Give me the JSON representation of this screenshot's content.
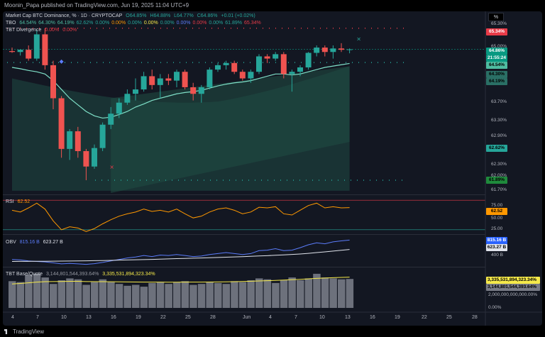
{
  "publisher_line": "Moonin_Papa published on TradingView.com, Jun 19, 2025 11:04 UTC+9",
  "footer_brand": "TradingView",
  "main_legend": {
    "title": "Market Cap BTC Dominance, % · 1D · CRYPTOCAP",
    "o": "O64.85%",
    "h": "H64.88%",
    "l": "L64.77%",
    "c": "C64.86%",
    "chg": "+0.01 (+0.02%)"
  },
  "tbo_legend": {
    "name": "TBO",
    "vals": [
      "64.54%",
      "64.30%",
      "64.19%",
      "62.62%",
      "0.00%",
      "0.00%",
      "0.00%",
      "0.00%",
      "0.00%",
      "0.00%",
      "0.00%",
      "0.00%",
      "61.89%",
      "65.34%"
    ]
  },
  "div_legend": {
    "name": "TBT Divergence",
    "v1": "0.00%",
    "v2": "0.00%"
  },
  "rsi_legend": {
    "name": "RSI",
    "value": "62.52"
  },
  "obv_legend": {
    "name": "OBV",
    "v1": "815.16 B",
    "v2": "623.27 B"
  },
  "base_legend": {
    "name": "TBT Base/Quote",
    "v1": "3,144,801,544,393.64%",
    "v2": "3,335,531,894,323.34%"
  },
  "price_axis": {
    "pct_label": "%",
    "ticks": [
      "65.30%",
      "65.00%",
      "64.70%",
      "64.30%",
      "63.70%",
      "63.30%",
      "62.90%",
      "62.30%",
      "62.00%",
      "61.70%"
    ],
    "badges": [
      {
        "text": "65.34%",
        "color": "#e83b48"
      },
      {
        "text": "64.86%",
        "color": "#089981"
      },
      {
        "text": "21:55:24",
        "color": "#089981"
      },
      {
        "text": "64.54%",
        "color": "#4ebca0"
      },
      {
        "text": "64.30%",
        "color": "#2a6f65"
      },
      {
        "text": "64.19%",
        "color": "#2a6f65"
      },
      {
        "text": "62.62%",
        "color": "#26a69a"
      },
      {
        "text": "61.89%",
        "color": "#1f8a3c"
      }
    ]
  },
  "rsi_axis": {
    "ticks": [
      "75.00",
      "50.00",
      "25.00"
    ],
    "badge": "62.52"
  },
  "obv_axis": {
    "badges": [
      "815.16 B",
      "623.27 B"
    ],
    "tick": "400 B"
  },
  "base_axis": {
    "badges": [
      "3,335,531,894,323.34%",
      "3,144,801,544,393.64%"
    ],
    "ticks": [
      "2,000,000,000,000.00%",
      "0.00%"
    ]
  },
  "dates": [
    "4",
    "7",
    "10",
    "13",
    "16",
    "19",
    "22",
    "25",
    "28",
    "Jun",
    "4",
    "7",
    "10",
    "13",
    "16",
    "19",
    "22",
    "25",
    "28"
  ],
  "chart_data": {
    "type": "candlestick",
    "title": "Market Cap BTC Dominance, % · 1D · CRYPTOCAP",
    "xlabel": "",
    "ylabel": "%",
    "ylim": [
      61.6,
      65.4
    ],
    "candles": [
      {
        "o": 64.82,
        "h": 64.9,
        "l": 64.78,
        "c": 64.8
      },
      {
        "o": 64.8,
        "h": 64.86,
        "l": 64.72,
        "c": 64.85
      },
      {
        "o": 64.85,
        "h": 64.95,
        "l": 64.6,
        "c": 64.65
      },
      {
        "o": 64.65,
        "h": 65.3,
        "l": 64.6,
        "c": 65.2
      },
      {
        "o": 65.2,
        "h": 65.34,
        "l": 64.4,
        "c": 64.5
      },
      {
        "o": 64.5,
        "h": 64.6,
        "l": 63.5,
        "c": 63.75
      },
      {
        "o": 63.75,
        "h": 63.8,
        "l": 62.4,
        "c": 62.6
      },
      {
        "o": 62.6,
        "h": 63.05,
        "l": 62.35,
        "c": 63.0
      },
      {
        "o": 63.0,
        "h": 63.1,
        "l": 62.4,
        "c": 62.55
      },
      {
        "o": 62.55,
        "h": 62.6,
        "l": 61.89,
        "c": 62.2
      },
      {
        "o": 62.2,
        "h": 62.7,
        "l": 62.15,
        "c": 62.62
      },
      {
        "o": 62.62,
        "h": 63.2,
        "l": 62.55,
        "c": 63.15
      },
      {
        "o": 63.15,
        "h": 63.55,
        "l": 63.05,
        "c": 63.4
      },
      {
        "o": 63.4,
        "h": 63.75,
        "l": 63.3,
        "c": 63.65
      },
      {
        "o": 63.65,
        "h": 63.95,
        "l": 63.6,
        "c": 63.85
      },
      {
        "o": 63.85,
        "h": 64.2,
        "l": 63.7,
        "c": 63.95
      },
      {
        "o": 63.95,
        "h": 64.35,
        "l": 63.9,
        "c": 64.25
      },
      {
        "o": 64.25,
        "h": 64.4,
        "l": 63.95,
        "c": 64.05
      },
      {
        "o": 64.05,
        "h": 64.3,
        "l": 63.75,
        "c": 64.2
      },
      {
        "o": 64.2,
        "h": 64.3,
        "l": 64.05,
        "c": 64.15
      },
      {
        "o": 64.15,
        "h": 64.4,
        "l": 64.0,
        "c": 64.35
      },
      {
        "o": 64.35,
        "h": 64.4,
        "l": 63.95,
        "c": 64.0
      },
      {
        "o": 64.0,
        "h": 64.1,
        "l": 63.7,
        "c": 63.85
      },
      {
        "o": 63.85,
        "h": 64.05,
        "l": 63.65,
        "c": 64.0
      },
      {
        "o": 64.0,
        "h": 64.45,
        "l": 63.95,
        "c": 64.4
      },
      {
        "o": 64.4,
        "h": 64.55,
        "l": 64.35,
        "c": 64.5
      },
      {
        "o": 64.5,
        "h": 64.6,
        "l": 64.4,
        "c": 64.55
      },
      {
        "o": 64.55,
        "h": 64.6,
        "l": 64.3,
        "c": 64.35
      },
      {
        "o": 64.35,
        "h": 64.4,
        "l": 64.15,
        "c": 64.2
      },
      {
        "o": 64.2,
        "h": 64.4,
        "l": 64.1,
        "c": 64.35
      },
      {
        "o": 64.35,
        "h": 64.75,
        "l": 64.3,
        "c": 64.7
      },
      {
        "o": 64.7,
        "h": 64.75,
        "l": 64.55,
        "c": 64.65
      },
      {
        "o": 64.65,
        "h": 64.8,
        "l": 64.6,
        "c": 64.75
      },
      {
        "o": 64.75,
        "h": 64.8,
        "l": 64.2,
        "c": 64.3
      },
      {
        "o": 64.3,
        "h": 64.4,
        "l": 63.9,
        "c": 64.35
      },
      {
        "o": 64.35,
        "h": 64.5,
        "l": 64.25,
        "c": 64.45
      },
      {
        "o": 64.45,
        "h": 64.8,
        "l": 64.4,
        "c": 64.78
      },
      {
        "o": 64.78,
        "h": 64.95,
        "l": 64.7,
        "c": 64.9
      },
      {
        "o": 64.9,
        "h": 64.95,
        "l": 64.7,
        "c": 64.8
      },
      {
        "o": 64.8,
        "h": 64.95,
        "l": 64.65,
        "c": 64.88
      },
      {
        "o": 64.88,
        "h": 65.0,
        "l": 64.8,
        "c": 64.85
      },
      {
        "o": 64.85,
        "h": 64.88,
        "l": 64.77,
        "c": 64.86
      }
    ],
    "rsi": [
      58,
      55,
      62,
      70,
      60,
      40,
      25,
      30,
      28,
      22,
      27,
      35,
      42,
      48,
      52,
      55,
      60,
      56,
      58,
      55,
      60,
      52,
      45,
      48,
      55,
      60,
      62,
      58,
      52,
      55,
      63,
      62,
      64,
      52,
      50,
      58,
      66,
      70,
      62,
      64,
      62,
      62.52
    ],
    "obv": [
      420,
      410,
      390,
      380,
      370,
      350,
      330,
      340,
      330,
      320,
      335,
      360,
      390,
      420,
      450,
      470,
      500,
      480,
      510,
      500,
      520,
      500,
      480,
      490,
      520,
      540,
      560,
      540,
      520,
      540,
      600,
      610,
      640,
      600,
      610,
      660,
      720,
      760,
      740,
      780,
      800,
      815
    ],
    "obv_ma": [
      380,
      381,
      382,
      383,
      384,
      385,
      386,
      388,
      390,
      392,
      395,
      398,
      402,
      406,
      410,
      414,
      418,
      422,
      427,
      432,
      437,
      442,
      446,
      451,
      456,
      461,
      467,
      472,
      478,
      484,
      491,
      498,
      506,
      514,
      522,
      532,
      545,
      560,
      575,
      592,
      608,
      623
    ],
    "base_bars": [
      2.9,
      2.8,
      3.6,
      3.7,
      3.3,
      2.6,
      3.0,
      3.2,
      3.1,
      2.5,
      2.8,
      3.1,
      2.8,
      2.6,
      2.4,
      2.5,
      2.3,
      2.7,
      2.8,
      2.6,
      2.8,
      2.9,
      2.5,
      2.6,
      2.8,
      2.7,
      2.6,
      2.9,
      2.8,
      3.0,
      3.2,
      3.1,
      2.7,
      3.0,
      3.3,
      3.0,
      3.2,
      3.7,
      3.3,
      3.2,
      3.1,
      3.14
    ],
    "base_ma": [
      2.6,
      2.65,
      2.72,
      2.8,
      2.85,
      2.86,
      2.87,
      2.88,
      2.88,
      2.86,
      2.85,
      2.85,
      2.84,
      2.83,
      2.82,
      2.81,
      2.8,
      2.8,
      2.8,
      2.79,
      2.79,
      2.8,
      2.8,
      2.8,
      2.81,
      2.82,
      2.83,
      2.85,
      2.87,
      2.89,
      2.92,
      2.95,
      2.98,
      3.02,
      3.06,
      3.1,
      3.15,
      3.2,
      3.24,
      3.28,
      3.31,
      3.34
    ]
  }
}
